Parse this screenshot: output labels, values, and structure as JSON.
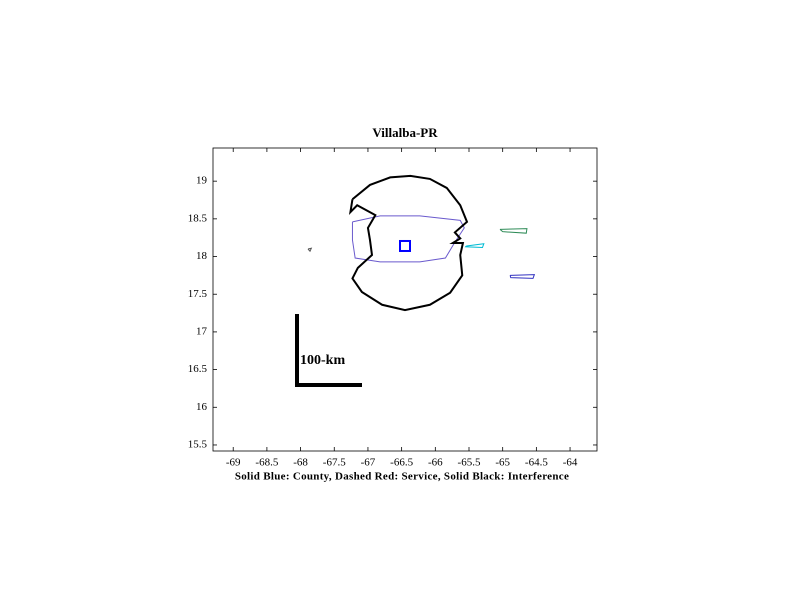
{
  "chart_data": {
    "type": "map",
    "title": "Villalba-PR",
    "xlabel": "Solid Blue: County, Dashed Red: Service, Solid Black: Interference",
    "annotation": "100-km",
    "xlim": [
      -69.3,
      -63.6
    ],
    "ylim": [
      15.42,
      19.44
    ],
    "xticks": [
      -69,
      -68.5,
      -68,
      -67.5,
      -67,
      -66.5,
      -66,
      -65.5,
      -65,
      -64.5,
      -64
    ],
    "yticks": [
      15.5,
      16,
      16.5,
      17,
      17.5,
      18,
      18.5,
      19
    ],
    "series": [
      {
        "color": "#6a5acd",
        "x": [
          -67.23,
          -66.82,
          -66.23,
          -65.63,
          -65.57,
          -65.71,
          -65.85,
          -66.23,
          -66.82,
          -67.19,
          -67.23,
          -67.23
        ],
        "values": [
          18.46,
          18.54,
          18.54,
          18.48,
          18.38,
          18.19,
          17.98,
          17.93,
          17.93,
          17.98,
          18.22,
          18.46
        ]
      },
      {
        "color": "#00bcd4",
        "x": [
          -65.54,
          -65.28,
          -65.3,
          -65.55,
          -65.54
        ],
        "values": [
          18.14,
          18.17,
          18.12,
          18.13,
          18.14
        ]
      },
      {
        "color": "#3030c0",
        "x": [
          -64.89,
          -64.53,
          -64.55,
          -64.88,
          -64.89
        ],
        "values": [
          17.75,
          17.76,
          17.71,
          17.72,
          17.75
        ]
      },
      {
        "color": "#2e8b57",
        "x": [
          -65.04,
          -64.64,
          -64.65,
          -65.0,
          -65.04
        ],
        "values": [
          18.36,
          18.37,
          18.31,
          18.33,
          18.36
        ]
      },
      {
        "color": "#555555",
        "x": [
          -67.89,
          -67.84,
          -67.86,
          -67.89
        ],
        "values": [
          18.1,
          18.11,
          18.07,
          18.1
        ]
      },
      {
        "color": "#000000",
        "width": 2,
        "x": [
          -67.23,
          -66.97,
          -66.67,
          -66.37,
          -66.08,
          -65.83,
          -65.63,
          -65.53,
          -65.71,
          -65.63,
          -65.74,
          -65.59,
          -65.63,
          -65.6,
          -65.78,
          -66.08,
          -66.45,
          -66.79,
          -67.09,
          -67.23,
          -67.15,
          -66.94,
          -66.97,
          -67.0,
          -66.89,
          -67.16,
          -67.26,
          -67.23
        ],
        "values": [
          18.76,
          18.95,
          19.05,
          19.07,
          19.03,
          18.91,
          18.68,
          18.46,
          18.32,
          18.24,
          18.18,
          18.18,
          18.02,
          17.75,
          17.52,
          17.36,
          17.29,
          17.36,
          17.53,
          17.71,
          17.85,
          18.02,
          18.22,
          18.38,
          18.55,
          18.68,
          18.59,
          18.76
        ]
      }
    ],
    "station": {
      "color": "#0000ff",
      "x": -66.45,
      "y": 18.14
    }
  }
}
